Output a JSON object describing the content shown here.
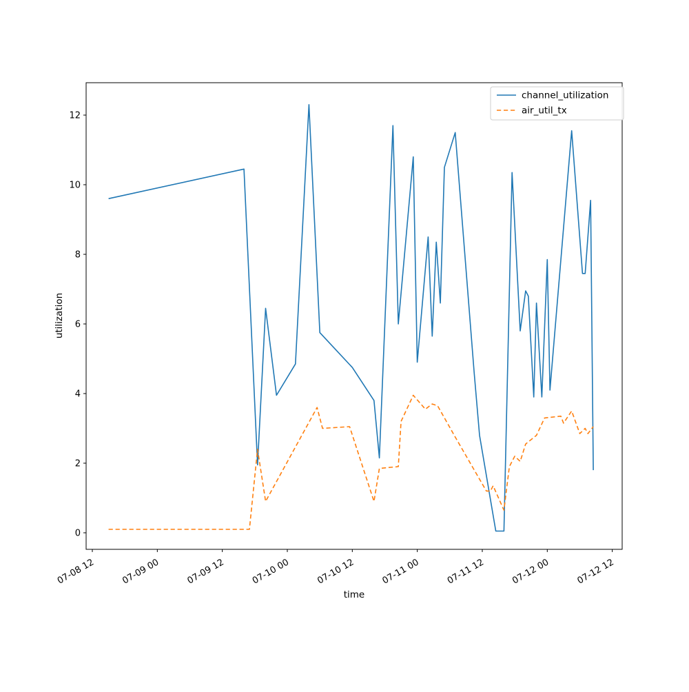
{
  "figure": {
    "background": "#ffffff"
  },
  "chart_data": {
    "type": "line",
    "title": "",
    "xlabel": "time",
    "ylabel": "utilization",
    "x_tick_labels": [
      "07-08 12",
      "07-09 00",
      "07-09 12",
      "07-10 00",
      "07-10 12",
      "07-11 00",
      "07-11 12",
      "07-12 00",
      "07-12 12"
    ],
    "y_tick_labels": [
      "0",
      "2",
      "4",
      "6",
      "8",
      "10",
      "12"
    ],
    "ylim": [
      -0.6,
      13.1
    ],
    "grid": false,
    "legend": {
      "position": "upper right",
      "entries": [
        "channel_utilization",
        "air_util_tx"
      ]
    },
    "series": [
      {
        "name": "channel_utilization",
        "color": "#1f77b4",
        "line_style": "solid",
        "points": [
          [
            "07-08 15:00",
            9.6
          ],
          [
            "07-09 16:00",
            10.45
          ],
          [
            "07-09 18:30",
            1.95
          ],
          [
            "07-09 20:00",
            6.45
          ],
          [
            "07-09 22:00",
            3.95
          ],
          [
            "07-10 01:30",
            4.85
          ],
          [
            "07-10 04:00",
            12.3
          ],
          [
            "07-10 06:00",
            5.75
          ],
          [
            "07-10 12:00",
            4.75
          ],
          [
            "07-10 16:00",
            3.8
          ],
          [
            "07-10 17:00",
            2.15
          ],
          [
            "07-10 19:30",
            11.7
          ],
          [
            "07-10 20:30",
            6.0
          ],
          [
            "07-10 23:15",
            10.8
          ],
          [
            "07-11 00:00",
            4.9
          ],
          [
            "07-11 02:00",
            8.5
          ],
          [
            "07-11 02:45",
            5.65
          ],
          [
            "07-11 03:30",
            8.35
          ],
          [
            "07-11 04:15",
            6.6
          ],
          [
            "07-11 05:00",
            10.5
          ],
          [
            "07-11 07:00",
            11.5
          ],
          [
            "07-11 10:30",
            4.6
          ],
          [
            "07-11 11:30",
            2.8
          ],
          [
            "07-11 14:30",
            0.05
          ],
          [
            "07-11 16:00",
            0.05
          ],
          [
            "07-11 17:30",
            10.35
          ],
          [
            "07-11 19:00",
            5.8
          ],
          [
            "07-11 20:00",
            6.95
          ],
          [
            "07-11 20:30",
            6.8
          ],
          [
            "07-11 21:30",
            3.9
          ],
          [
            "07-11 22:00",
            6.6
          ],
          [
            "07-11 23:00",
            3.9
          ],
          [
            "07-12 00:00",
            7.85
          ],
          [
            "07-12 00:30",
            4.1
          ],
          [
            "07-12 04:30",
            11.55
          ],
          [
            "07-12 06:30",
            7.45
          ],
          [
            "07-12 07:00",
            7.45
          ],
          [
            "07-12 08:00",
            9.55
          ],
          [
            "07-12 08:30",
            1.8
          ]
        ]
      },
      {
        "name": "air_util_tx",
        "color": "#ff7f0e",
        "line_style": "dashed",
        "points": [
          [
            "07-08 15:00",
            0.1
          ],
          [
            "07-09 17:00",
            0.1
          ],
          [
            "07-09 18:30",
            2.4
          ],
          [
            "07-09 20:00",
            0.9
          ],
          [
            "07-10 05:30",
            3.6
          ],
          [
            "07-10 06:30",
            3.0
          ],
          [
            "07-10 11:30",
            3.05
          ],
          [
            "07-10 16:00",
            0.9
          ],
          [
            "07-10 17:00",
            1.85
          ],
          [
            "07-10 20:30",
            1.9
          ],
          [
            "07-10 21:00",
            3.2
          ],
          [
            "07-10 23:15",
            3.95
          ],
          [
            "07-11 01:30",
            3.55
          ],
          [
            "07-11 02:45",
            3.7
          ],
          [
            "07-11 03:45",
            3.65
          ],
          [
            "07-11 07:00",
            2.75
          ],
          [
            "07-11 12:45",
            1.2
          ],
          [
            "07-11 13:30",
            1.2
          ],
          [
            "07-11 14:00",
            1.35
          ],
          [
            "07-11 16:00",
            0.65
          ],
          [
            "07-11 17:00",
            1.9
          ],
          [
            "07-11 18:00",
            2.2
          ],
          [
            "07-11 19:00",
            2.05
          ],
          [
            "07-11 20:00",
            2.55
          ],
          [
            "07-11 22:00",
            2.8
          ],
          [
            "07-11 23:30",
            3.3
          ],
          [
            "07-12 02:30",
            3.35
          ],
          [
            "07-12 03:00",
            3.15
          ],
          [
            "07-12 04:30",
            3.5
          ],
          [
            "07-12 06:00",
            2.85
          ],
          [
            "07-12 07:00",
            3.0
          ],
          [
            "07-12 07:30",
            2.85
          ],
          [
            "07-12 08:30",
            3.05
          ]
        ]
      }
    ]
  }
}
